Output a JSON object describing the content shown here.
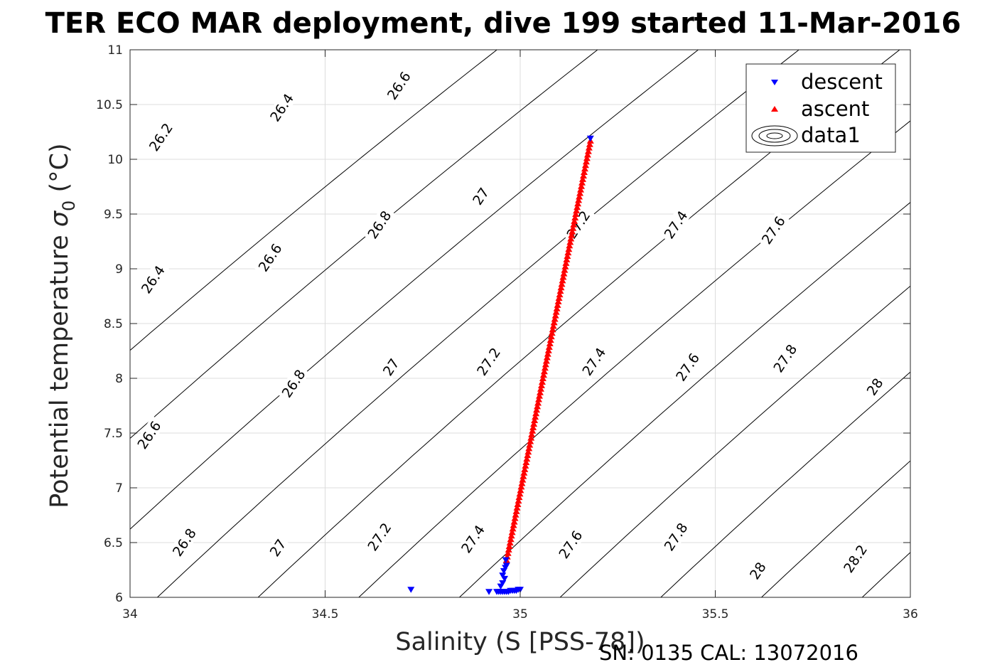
{
  "chart_data": {
    "type": "scatter",
    "title": "TER ECO MAR deployment, dive 199 started 11-Mar-2016",
    "xlabel": "Salinity (S [PSS-78])",
    "ylabel_main": "Potential temperature ",
    "ylabel_symbol": "σ",
    "ylabel_subscript": "0",
    "ylabel_unit": " (°C)",
    "xlim": [
      34,
      36
    ],
    "ylim": [
      6,
      11
    ],
    "xticks": [
      34,
      34.5,
      35,
      35.5,
      36
    ],
    "xtick_labels": [
      "34",
      "34.5",
      "35",
      "35.5",
      "36"
    ],
    "yticks": [
      6,
      6.5,
      7,
      7.5,
      8,
      8.5,
      9,
      9.5,
      10,
      10.5,
      11
    ],
    "ytick_labels": [
      "6",
      "6.5",
      "7",
      "7.5",
      "8",
      "8.5",
      "9",
      "9.5",
      "10",
      "10.5",
      "11"
    ],
    "grid": true,
    "legend_position": "top-right",
    "legend": [
      "descent",
      "ascent",
      "data1"
    ],
    "footnote": "SN: 0135  CAL: 13072016",
    "contour_levels": [
      26.2,
      26.4,
      26.6,
      26.8,
      27.0,
      27.2,
      27.4,
      27.6,
      27.8,
      28.0,
      28.2
    ],
    "contour_labels": [
      {
        "text": "26.2",
        "s": 34.08,
        "t": 10.2
      },
      {
        "text": "26.4",
        "s": 34.39,
        "t": 10.47
      },
      {
        "text": "26.6",
        "s": 34.69,
        "t": 10.67
      },
      {
        "text": "26.4",
        "s": 34.06,
        "t": 8.9
      },
      {
        "text": "26.6",
        "s": 34.36,
        "t": 9.1
      },
      {
        "text": "26.8",
        "s": 34.64,
        "t": 9.4
      },
      {
        "text": "27",
        "s": 34.9,
        "t": 9.66
      },
      {
        "text": "27.2",
        "s": 35.15,
        "t": 9.4
      },
      {
        "text": "27.4",
        "s": 35.4,
        "t": 9.4
      },
      {
        "text": "27.6",
        "s": 35.65,
        "t": 9.35
      },
      {
        "text": "26.6",
        "s": 34.05,
        "t": 7.48
      },
      {
        "text": "26.8",
        "s": 34.42,
        "t": 7.95
      },
      {
        "text": "27",
        "s": 34.67,
        "t": 8.1
      },
      {
        "text": "27.2",
        "s": 34.92,
        "t": 8.15
      },
      {
        "text": "27.4",
        "s": 35.19,
        "t": 8.15
      },
      {
        "text": "27.6",
        "s": 35.43,
        "t": 8.1
      },
      {
        "text": "27.8",
        "s": 35.68,
        "t": 8.18
      },
      {
        "text": "28",
        "s": 35.91,
        "t": 7.92
      },
      {
        "text": "26.8",
        "s": 34.14,
        "t": 6.5
      },
      {
        "text": "27",
        "s": 34.38,
        "t": 6.45
      },
      {
        "text": "27.2",
        "s": 34.64,
        "t": 6.55
      },
      {
        "text": "27.4",
        "s": 34.88,
        "t": 6.53
      },
      {
        "text": "27.6",
        "s": 35.13,
        "t": 6.48
      },
      {
        "text": "27.8",
        "s": 35.4,
        "t": 6.55
      },
      {
        "text": "28",
        "s": 35.61,
        "t": 6.24
      },
      {
        "text": "28.2",
        "s": 35.86,
        "t": 6.35
      }
    ],
    "series": [
      {
        "name": "descent",
        "color": "#0000ff",
        "marker": "triangle-down",
        "x": [
          35.18,
          34.72,
          34.92,
          34.94,
          34.945,
          34.95,
          34.955,
          34.96,
          34.965,
          34.97,
          34.975,
          34.98,
          34.985,
          34.99,
          34.995,
          35.0,
          34.95,
          34.955,
          34.96,
          34.955,
          34.958,
          34.962,
          34.965,
          34.963
        ],
        "y": [
          10.19,
          6.07,
          6.05,
          6.05,
          6.05,
          6.05,
          6.05,
          6.05,
          6.05,
          6.05,
          6.06,
          6.06,
          6.06,
          6.06,
          6.07,
          6.07,
          6.1,
          6.13,
          6.17,
          6.2,
          6.24,
          6.27,
          6.29,
          6.34
        ]
      },
      {
        "name": "ascent",
        "color": "#ff0000",
        "marker": "triangle-up",
        "x": [
          35.18,
          34.965
        ],
        "y": [
          10.17,
          6.34
        ]
      }
    ]
  }
}
